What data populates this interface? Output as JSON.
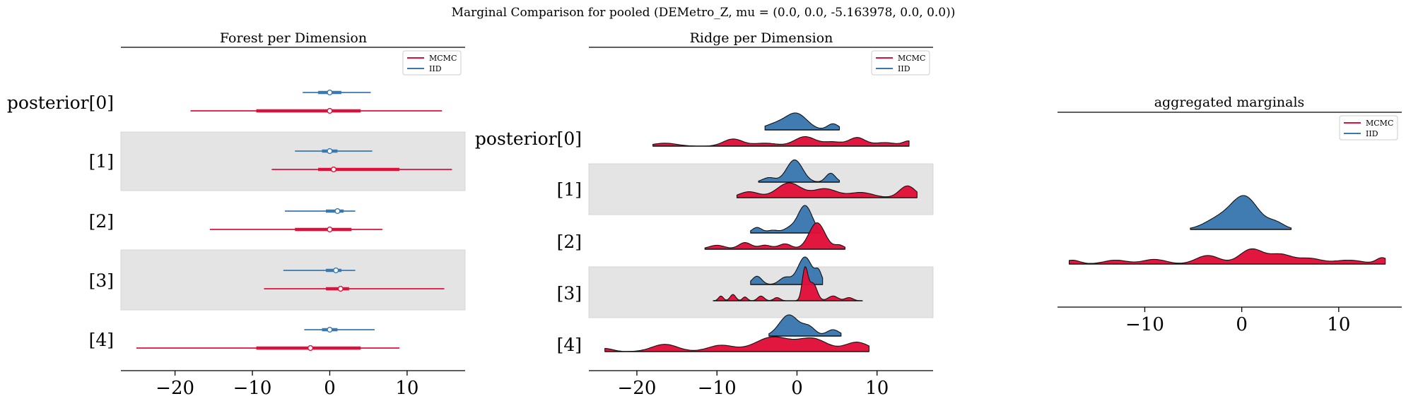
{
  "suptitle": "Marginal Comparison for pooled (DEMetro_Z, mu = (0.0, 0.0, -5.163978, 0.0, 0.0))",
  "colors": {
    "mcmc": "#e0103a",
    "iid": "#3a78b0",
    "band": "#e4e4e4",
    "axis": "#000000"
  },
  "chart_data": [
    {
      "type": "forest",
      "title": "Forest per Dimension",
      "xlim": [
        -27,
        17.5
      ],
      "xticks": [
        -20,
        -10,
        0,
        10
      ],
      "tick_labels": [
        "−20",
        "−10",
        "0",
        "10"
      ],
      "row_labels": [
        "posterior[0]",
        "[1]",
        "[2]",
        "[3]",
        "[4]"
      ],
      "legend": {
        "position": "top-right",
        "entries": [
          "MCMC",
          "IID"
        ]
      },
      "series": [
        {
          "name": "MCMC",
          "rows": [
            {
              "lo": -18.0,
              "q1": -9.5,
              "center": 0.0,
              "q3": 4.0,
              "hi": 14.5
            },
            {
              "lo": -7.5,
              "q1": -1.5,
              "center": 0.5,
              "q3": 9.0,
              "hi": 15.8
            },
            {
              "lo": -15.5,
              "q1": -4.5,
              "center": 0.0,
              "q3": 2.8,
              "hi": 6.8
            },
            {
              "lo": -8.5,
              "q1": -0.5,
              "center": 1.4,
              "q3": 2.5,
              "hi": 14.8
            },
            {
              "lo": -25.0,
              "q1": -9.5,
              "center": -2.5,
              "q3": 4.0,
              "hi": 9.0
            }
          ]
        },
        {
          "name": "IID",
          "rows": [
            {
              "lo": -3.5,
              "q1": -1.5,
              "center": 0.0,
              "q3": 1.5,
              "hi": 5.3
            },
            {
              "lo": -4.5,
              "q1": -1.0,
              "center": 0.0,
              "q3": 1.0,
              "hi": 5.5
            },
            {
              "lo": -5.8,
              "q1": -0.5,
              "center": 1.0,
              "q3": 1.8,
              "hi": 3.3
            },
            {
              "lo": -6.0,
              "q1": -0.5,
              "center": 0.8,
              "q3": 1.5,
              "hi": 3.3
            },
            {
              "lo": -3.3,
              "q1": -1.0,
              "center": 0.0,
              "q3": 1.0,
              "hi": 5.8
            }
          ]
        }
      ]
    },
    {
      "type": "area",
      "title": "Ridge per Dimension",
      "xlim": [
        -26,
        17
      ],
      "xticks": [
        -20,
        -10,
        0,
        10
      ],
      "tick_labels": [
        "−20",
        "−10",
        "0",
        "10"
      ],
      "row_labels": [
        "posterior[0]",
        "[1]",
        "[2]",
        "[3]",
        "[4]"
      ],
      "legend": {
        "position": "top-right",
        "entries": [
          "MCMC",
          "IID"
        ]
      },
      "series": [
        {
          "name": "IID",
          "rows": [
            {
              "lo": -4.0,
              "hi": 5.3,
              "height": 0.8,
              "bumps": [
                [
                  0,
                  1.3,
                  1.0
                ],
                [
                  -2.5,
                  1.5,
                  0.4
                ],
                [
                  4.5,
                  0.7,
                  0.4
                ]
              ]
            },
            {
              "lo": -4.8,
              "hi": 5.3,
              "height": 1.05,
              "bumps": [
                [
                  -0.3,
                  1.0,
                  1.0
                ],
                [
                  -3.5,
                  0.8,
                  0.2
                ],
                [
                  4.2,
                  0.6,
                  0.4
                ]
              ]
            },
            {
              "lo": -5.8,
              "hi": 3.0,
              "height": 1.3,
              "bumps": [
                [
                  1.0,
                  0.9,
                  1.0
                ],
                [
                  -5.0,
                  0.6,
                  0.2
                ],
                [
                  -3.0,
                  0.7,
                  0.1
                ],
                [
                  -1.0,
                  0.7,
                  0.15
                ]
              ]
            },
            {
              "lo": -5.8,
              "hi": 3.2,
              "height": 1.3,
              "bumps": [
                [
                  1.0,
                  0.9,
                  1.0
                ],
                [
                  -5.0,
                  0.6,
                  0.3
                ],
                [
                  -1.5,
                  0.7,
                  0.25
                ],
                [
                  2.7,
                  0.4,
                  0.4
                ]
              ]
            },
            {
              "lo": -3.5,
              "hi": 5.5,
              "height": 1.0,
              "bumps": [
                [
                  -1.0,
                  1.2,
                  1.0
                ],
                [
                  1.5,
                  0.8,
                  0.4
                ],
                [
                  4.5,
                  0.8,
                  0.3
                ]
              ]
            }
          ]
        },
        {
          "name": "MCMC",
          "rows": [
            {
              "lo": -18.0,
              "hi": 14.0,
              "height": 0.45,
              "bumps": [
                [
                  -16.5,
                  1.5,
                  0.25
                ],
                [
                  -8.0,
                  1.2,
                  0.6
                ],
                [
                  -4.0,
                  1.5,
                  0.25
                ],
                [
                  1.0,
                  1.3,
                  0.8
                ],
                [
                  4.5,
                  1.2,
                  0.35
                ],
                [
                  7.5,
                  1.0,
                  0.7
                ],
                [
                  11.0,
                  1.5,
                  0.3
                ],
                [
                  14.0,
                  0.7,
                  0.4
                ]
              ]
            },
            {
              "lo": -7.5,
              "hi": 15.0,
              "height": 0.7,
              "bumps": [
                [
                  -6.0,
                  1.2,
                  0.4
                ],
                [
                  -1.0,
                  1.5,
                  1.0
                ],
                [
                  3.5,
                  1.5,
                  0.6
                ],
                [
                  8.0,
                  1.5,
                  0.35
                ],
                [
                  13.8,
                  1.0,
                  0.8
                ]
              ]
            },
            {
              "lo": -11.5,
              "hi": 6.0,
              "height": 1.25,
              "bumps": [
                [
                  -10.0,
                  1.0,
                  0.15
                ],
                [
                  -6.5,
                  0.8,
                  0.25
                ],
                [
                  -4.0,
                  0.8,
                  0.15
                ],
                [
                  -1.5,
                  0.8,
                  0.2
                ],
                [
                  2.5,
                  1.0,
                  1.0
                ],
                [
                  5.3,
                  0.6,
                  0.15
                ]
              ]
            },
            {
              "lo": -10.5,
              "hi": 8.2,
              "height": 1.6,
              "bumps": [
                [
                  1.0,
                  0.35,
                  1.0
                ],
                [
                  2.0,
                  0.5,
                  0.55
                ],
                [
                  -8.0,
                  0.35,
                  0.2
                ],
                [
                  -9.5,
                  0.3,
                  0.15
                ],
                [
                  -6.5,
                  0.3,
                  0.12
                ],
                [
                  -4.5,
                  0.4,
                  0.15
                ],
                [
                  -2.5,
                  0.4,
                  0.1
                ],
                [
                  4.5,
                  0.6,
                  0.15
                ],
                [
                  6.5,
                  0.5,
                  0.1
                ]
              ]
            },
            {
              "lo": -24.0,
              "hi": 9.0,
              "height": 0.7,
              "bumps": [
                [
                  -24.0,
                  1.0,
                  0.15
                ],
                [
                  -16.5,
                  1.6,
                  0.35
                ],
                [
                  -9.5,
                  1.6,
                  0.3
                ],
                [
                  -3.0,
                  2.2,
                  0.7
                ],
                [
                  2.0,
                  1.8,
                  0.6
                ],
                [
                  7.5,
                  1.5,
                  0.45
                ]
              ]
            }
          ]
        }
      ]
    },
    {
      "type": "area",
      "title": "aggregated marginals",
      "xlim": [
        -19,
        16.5
      ],
      "xticks": [
        -10,
        0,
        10
      ],
      "tick_labels": [
        "−10",
        "0",
        "10"
      ],
      "legend": {
        "position": "top-right",
        "entries": [
          "MCMC",
          "IID"
        ]
      },
      "series": [
        {
          "name": "IID",
          "lo": -5.3,
          "hi": 5.1,
          "height": 1.0,
          "bumps": [
            [
              0.3,
              1.4,
              1.0
            ],
            [
              -2.5,
              1.4,
              0.3
            ],
            [
              3.5,
              0.9,
              0.2
            ]
          ]
        },
        {
          "name": "MCMC",
          "lo": -17.8,
          "hi": 14.8,
          "height": 0.45,
          "bumps": [
            [
              -17.5,
              0.8,
              0.25
            ],
            [
              -13.0,
              1.2,
              0.25
            ],
            [
              -9.0,
              1.2,
              0.3
            ],
            [
              -3.5,
              1.2,
              0.55
            ],
            [
              1.0,
              1.2,
              0.95
            ],
            [
              4.0,
              1.2,
              0.6
            ],
            [
              7.0,
              1.2,
              0.35
            ],
            [
              11.0,
              1.5,
              0.25
            ],
            [
              14.5,
              0.6,
              0.4
            ]
          ]
        }
      ]
    }
  ]
}
